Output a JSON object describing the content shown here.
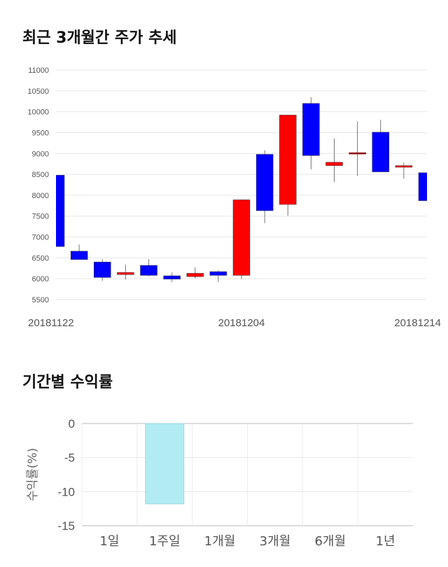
{
  "headings": {
    "price_trend": "최근 3개월간 주가 추세",
    "returns": "기간별 수익률"
  },
  "colors": {
    "up": "#ff0000",
    "down": "#0000ff",
    "flat": "#8b0000",
    "returns_bar": "#b2ebf2"
  },
  "chart_data": [
    {
      "type": "candlestick",
      "yticks": [
        11000,
        10500,
        10000,
        9500,
        9000,
        8500,
        8000,
        7500,
        7000,
        6500,
        6000,
        5500
      ],
      "ylim": [
        5500,
        11000
      ],
      "xticks": [
        "20181122",
        "20181204",
        "20181214"
      ],
      "candles": [
        {
          "o": 8480,
          "h": 8480,
          "l": 6770,
          "c": 6770
        },
        {
          "o": 6660,
          "h": 6820,
          "l": 6450,
          "c": 6460
        },
        {
          "o": 6400,
          "h": 6470,
          "l": 5950,
          "c": 6030
        },
        {
          "o": 6100,
          "h": 6340,
          "l": 5980,
          "c": 6150
        },
        {
          "o": 6320,
          "h": 6470,
          "l": 6060,
          "c": 6080
        },
        {
          "o": 6070,
          "h": 6150,
          "l": 5920,
          "c": 5990
        },
        {
          "o": 6050,
          "h": 6270,
          "l": 6010,
          "c": 6130
        },
        {
          "o": 6170,
          "h": 6200,
          "l": 5920,
          "c": 6080
        },
        {
          "o": 6080,
          "h": 7900,
          "l": 5990,
          "c": 7890
        },
        {
          "o": 8980,
          "h": 9080,
          "l": 7330,
          "c": 7630
        },
        {
          "o": 7780,
          "h": 9920,
          "l": 7510,
          "c": 9920
        },
        {
          "o": 10200,
          "h": 10350,
          "l": 8620,
          "c": 8950
        },
        {
          "o": 8710,
          "h": 9360,
          "l": 8320,
          "c": 8790
        },
        {
          "o": 9020,
          "h": 9770,
          "l": 8460,
          "c": 9020
        },
        {
          "o": 9510,
          "h": 9810,
          "l": 8560,
          "c": 8560
        },
        {
          "o": 8670,
          "h": 8780,
          "l": 8400,
          "c": 8710
        },
        {
          "o": 8540,
          "h": 8540,
          "l": 7870,
          "c": 7870
        }
      ]
    },
    {
      "type": "bar",
      "categories": [
        "1일",
        "1주일",
        "1개월",
        "3개월",
        "6개월",
        "1년"
      ],
      "values": [
        null,
        -11.8,
        null,
        null,
        null,
        null
      ],
      "ylabel": "수익률(%)",
      "yticks": [
        "0",
        "-5",
        "-10",
        "-15"
      ],
      "ylim": [
        -15,
        0
      ]
    }
  ]
}
